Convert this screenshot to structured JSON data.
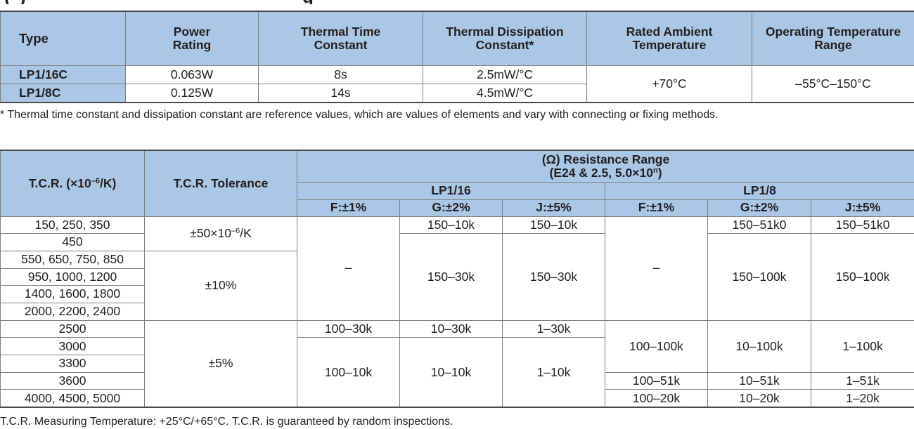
{
  "spec_table": {
    "headers": {
      "type": "Type",
      "power_line1": "Power",
      "power_line2": "Rating",
      "ttc_line1": "Thermal Time",
      "ttc_line2": "Constant",
      "tdc_line1": "Thermal Dissipation",
      "tdc_line2": "Constant*",
      "rat_line1": "Rated Ambient",
      "rat_line2": "Temperature",
      "otr_line1": "Operating Temperature",
      "otr_line2": "Range"
    },
    "rows": [
      {
        "type": "LP1/16C",
        "power": "0.063W",
        "ttc": "8s",
        "tdc": "2.5mW/°C"
      },
      {
        "type": "LP1/8C",
        "power": "0.125W",
        "ttc": "14s",
        "tdc": "4.5mW/°C"
      }
    ],
    "rated_ambient": "+70°C",
    "operating_range": "–55°C–150°C"
  },
  "spec_note": "* Thermal time constant and dissipation constant are reference values, which are values of elements and vary with connecting or fixing methods.",
  "tcr_table": {
    "headers": {
      "tcr_prefix": "T.C.R. (×10",
      "tcr_exp": "–6",
      "tcr_suffix": "/K)",
      "tolerance": "T.C.R. Tolerance",
      "range_line1": "(Ω) Resistance Range",
      "range_line2_prefix": "(E24 & 2.5, 5.0×10",
      "range_line2_exp": "n",
      "range_line2_suffix": ")",
      "group1": "LP1/16",
      "group2": "LP1/8",
      "f": "F:±1%",
      "g": "G:±2%",
      "j": "J:±5%"
    },
    "tcr_values": [
      "150, 250, 350",
      "450",
      "550, 650, 750, 850",
      "950, 1000, 1200",
      "1400, 1600, 1800",
      "2000, 2200, 2400",
      "2500",
      "3000",
      "3300",
      "3600",
      "4000, 4500, 5000"
    ],
    "tolerances": {
      "t1_prefix": "±50×10",
      "t1_exp": "–6",
      "t1_suffix": "/K",
      "t2": "±10%",
      "t3": "±5%"
    },
    "lp116": {
      "f_dash": "–",
      "g_r1": "150–10k",
      "j_r1": "150–10k",
      "g_mid": "150–30k",
      "j_mid": "150–30k",
      "f_2500": "100–30k",
      "g_2500": "10–30k",
      "j_2500": "1–30k",
      "f_low": "100–10k",
      "g_low": "10–10k",
      "j_low": "1–10k"
    },
    "lp18": {
      "f_dash": "–",
      "g_r1": "150–51k0",
      "j_r1": "150–51k0",
      "g_mid": "150–100k",
      "j_mid": "150–100k",
      "f_hi": "100–100k",
      "g_hi": "10–100k",
      "j_hi": "1–100k",
      "f_3600": "100–51k",
      "g_3600": "10–51k",
      "j_3600": "1–51k",
      "f_4000": "100–20k",
      "g_4000": "10–20k",
      "j_4000": "1–20k"
    }
  },
  "footer": "T.C.R. Measuring Temperature: +25°C/+65°C.   T.C.R. is guaranteed by random inspections.",
  "colors": {
    "header_fill": "#abc7e6",
    "text": "#231f20",
    "grid": "#7f7f7f"
  }
}
